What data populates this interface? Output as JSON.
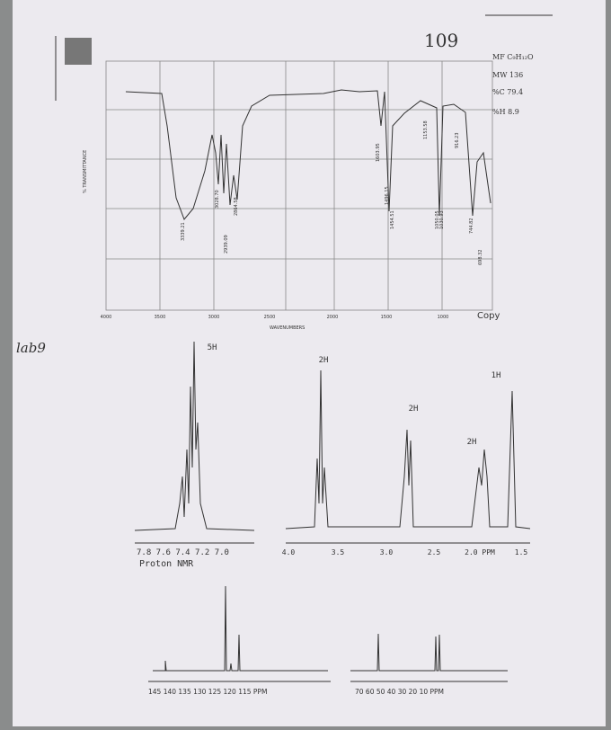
{
  "header": {
    "page_number": "109"
  },
  "formula": {
    "mf": "MF C₉H₁₂O",
    "mw": "MW 136",
    "c": "%C 79.4",
    "h": "%H 8.9"
  },
  "margin_note": "lab9",
  "ir": {
    "y_label": "% TRANSMITTANCE",
    "x_label": "WAVENUMBERS",
    "stamp": "Copy",
    "x_ticks": [
      "4000",
      "3500",
      "3000",
      "2500",
      "2000",
      "1500",
      "1000"
    ],
    "peaks": [
      "3339.21",
      "3028.70",
      "2939.09",
      "2864.58",
      "1603.95",
      "1496.15",
      "1454.51",
      "1153.58",
      "1050.05",
      "1030.93",
      "916.23",
      "744.82",
      "698.32"
    ]
  },
  "proton_nmr": {
    "title": "Proton NMR",
    "aromatic_axis": "7.8 7.6 7.4 7.2 7.0",
    "aliphatic_axis": [
      "4.0",
      "3.5",
      "3.0",
      "2.5",
      "2.0 PPM",
      "1.5"
    ],
    "integrations": [
      "5H",
      "2H",
      "2H",
      "2H",
      "1H"
    ]
  },
  "carbon_nmr": {
    "aromatic_axis": "145 140 135 130 125 120 115 PPM",
    "aliphatic_axis": "70 60 50 40 30 20 10 PPM"
  }
}
